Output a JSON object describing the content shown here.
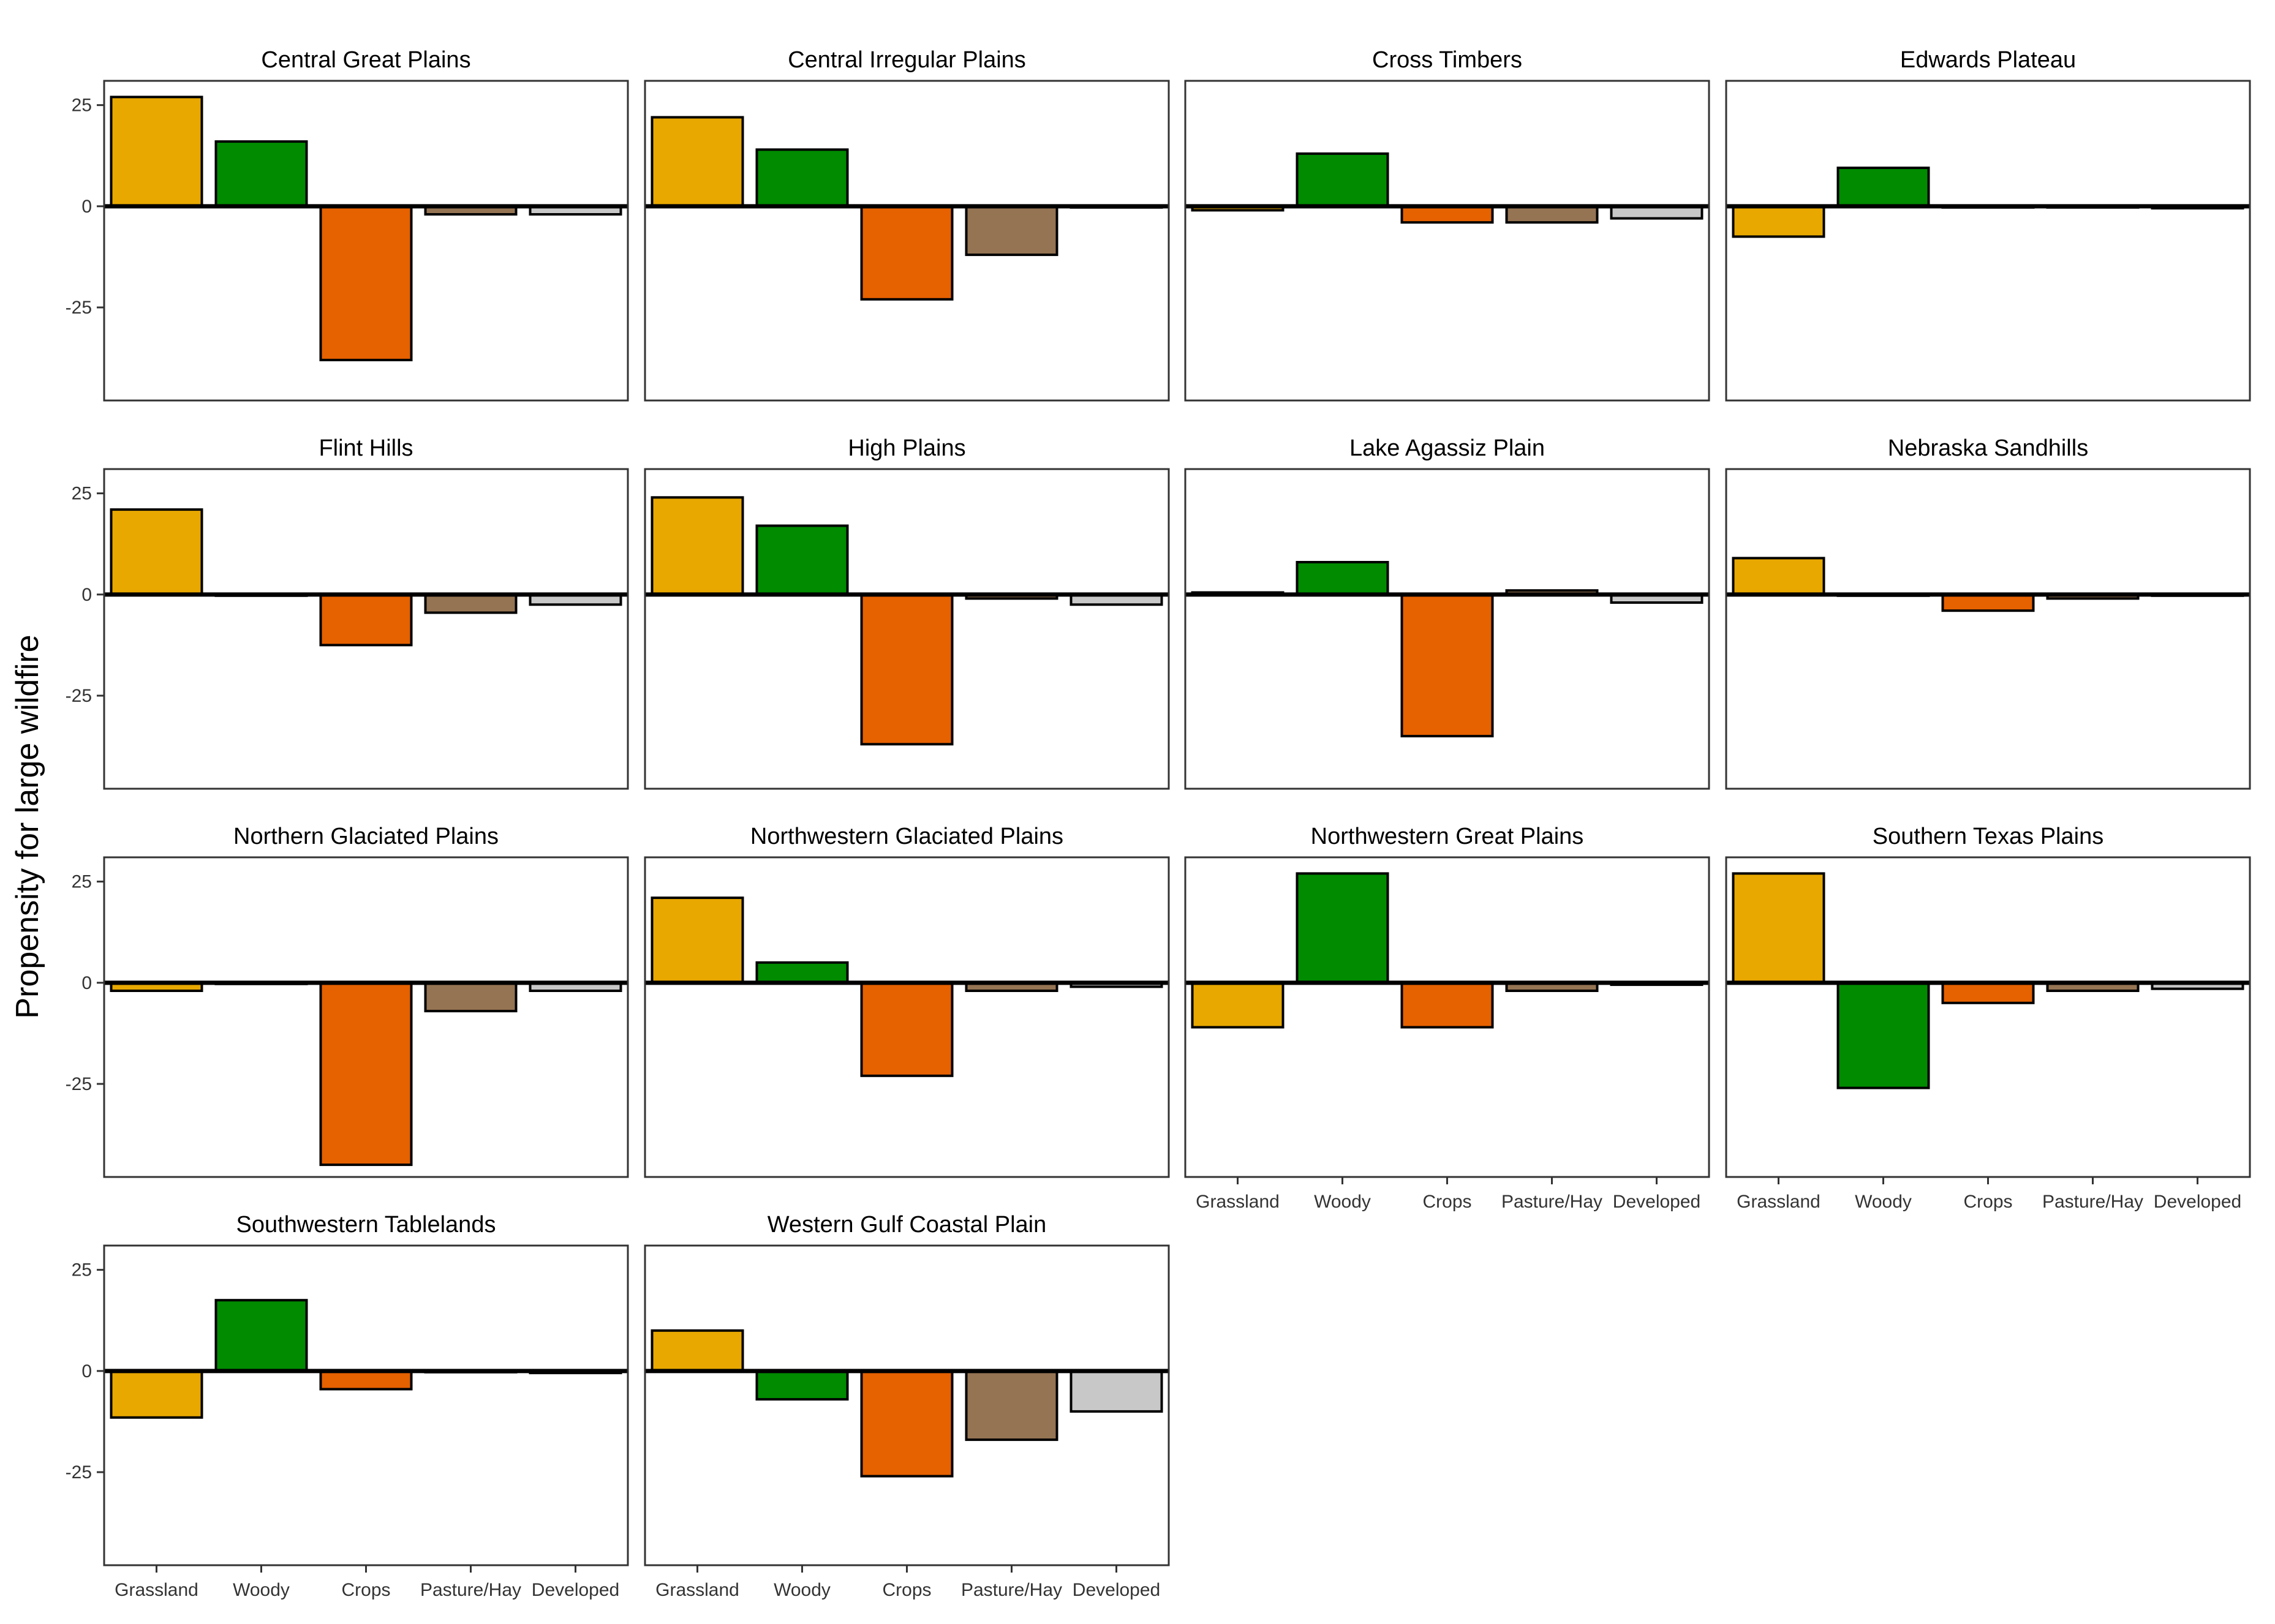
{
  "ylabel": "Propensity for large wildfire",
  "categories": [
    "Grassland",
    "Woody",
    "Crops",
    "Pasture/Hay",
    "Developed"
  ],
  "colors": {
    "Grassland": "#E8A800",
    "Woody": "#008B00",
    "Crops": "#E66100",
    "Pasture/Hay": "#957453",
    "Developed": "#C8C8C8"
  },
  "chart_data": {
    "type": "bar",
    "layout": "facet-grid 4 columns",
    "ylabel": "Propensity for large wildfire",
    "xlabel": "",
    "yticks": [
      25,
      0,
      -25
    ],
    "ylim": [
      -48,
      31
    ],
    "categories": [
      "Grassland",
      "Woody",
      "Crops",
      "Pasture/Hay",
      "Developed"
    ],
    "panels": [
      {
        "title": "Central Great Plains",
        "values": [
          27,
          16,
          -38,
          -2,
          -2
        ]
      },
      {
        "title": "Central Irregular Plains",
        "values": [
          22,
          14,
          -23,
          -12,
          0
        ]
      },
      {
        "title": "Cross Timbers",
        "values": [
          -1,
          13,
          -4,
          -4,
          -3
        ]
      },
      {
        "title": "Edwards Plateau",
        "values": [
          -7.5,
          9.5,
          0,
          0,
          -0.5
        ]
      },
      {
        "title": "Flint Hills",
        "values": [
          21,
          0,
          -12.5,
          -4.5,
          -2.5
        ]
      },
      {
        "title": "High Plains",
        "values": [
          24,
          17,
          -37,
          -1,
          -2.5
        ]
      },
      {
        "title": "Lake Agassiz Plain",
        "values": [
          0.5,
          8,
          -35,
          1,
          -2
        ]
      },
      {
        "title": "Nebraska Sandhills",
        "values": [
          9,
          0,
          -4,
          -1,
          0
        ]
      },
      {
        "title": "Northern Glaciated Plains",
        "values": [
          -2,
          0,
          -45,
          -7,
          -2
        ]
      },
      {
        "title": "Northwestern Glaciated Plains",
        "values": [
          21,
          5,
          -23,
          -2,
          -1
        ]
      },
      {
        "title": "Northwestern Great Plains",
        "values": [
          -11,
          27,
          -11,
          -2,
          -0.5
        ]
      },
      {
        "title": "Southern Texas Plains",
        "values": [
          27,
          -26,
          -5,
          -2,
          -1.5
        ]
      },
      {
        "title": "Southwestern Tablelands",
        "values": [
          -11.5,
          17.5,
          -4.5,
          0,
          -0.5
        ]
      },
      {
        "title": "Western Gulf Coastal Plain",
        "values": [
          10,
          -7,
          -26,
          -17,
          -10
        ]
      }
    ]
  }
}
